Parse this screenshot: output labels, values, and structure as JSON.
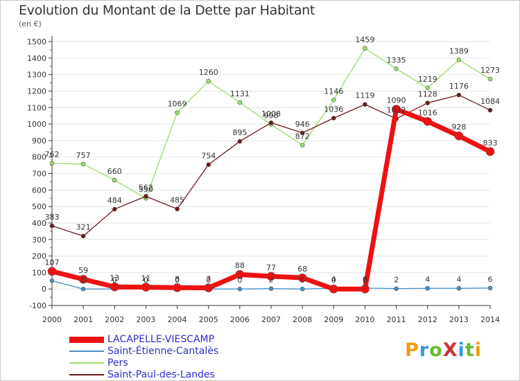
{
  "title": "Evolution du Montant de la Dette par Habitant",
  "unit_label": "(en €)",
  "logo_text": "ProXiti",
  "colors": {
    "axis": "#333333",
    "grid": "#e6e6e6",
    "lacapelle": "#ee1111",
    "saint_etienne": "#4a90c8",
    "pers": "#99dd66",
    "saint_paul": "#6b1a1a",
    "logo_letters": [
      "#f39c12",
      "#3399dd",
      "#66bb33",
      "#cc3333",
      "#3399dd",
      "#66bb33",
      "#f39c12"
    ]
  },
  "chart_data": {
    "type": "line",
    "title": "Evolution du Montant de la Dette par Habitant",
    "ylabel": "(en €)",
    "xlabel": "",
    "x": [
      2000,
      2001,
      2002,
      2003,
      2004,
      2005,
      2006,
      2007,
      2008,
      2009,
      2010,
      2011,
      2012,
      2013,
      2014
    ],
    "ylim": [
      -100,
      1500
    ],
    "yticks": [
      -100,
      0,
      100,
      200,
      300,
      400,
      500,
      600,
      700,
      800,
      900,
      1000,
      1100,
      1200,
      1300,
      1400,
      1500
    ],
    "grid": true,
    "legend_position": "bottom-left",
    "series": [
      {
        "name": "LACAPELLE-VIESCAMP",
        "key": "lacapelle",
        "values": [
          107,
          59,
          13,
          11,
          8,
          7,
          88,
          77,
          68,
          0,
          0,
          1090,
          1016,
          928,
          833
        ]
      },
      {
        "name": "Saint-Étienne-Cantalès",
        "key": "saint_etienne",
        "values": [
          50,
          0,
          0,
          0,
          0,
          0,
          0,
          2,
          0,
          4,
          6,
          2,
          4,
          4,
          6
        ]
      },
      {
        "name": "Pers",
        "key": "pers",
        "values": [
          762,
          757,
          660,
          550,
          1069,
          1260,
          1131,
          998,
          872,
          1146,
          1459,
          1335,
          1219,
          1389,
          1273
        ]
      },
      {
        "name": "Saint-Paul-des-Landes",
        "key": "saint_paul",
        "values": [
          383,
          321,
          484,
          562,
          485,
          754,
          895,
          1008,
          946,
          1036,
          1119,
          1032,
          1128,
          1176,
          1084
        ]
      }
    ],
    "data_labels": {
      "lacapelle": [
        "107",
        "59",
        "13",
        "11",
        "8",
        "7",
        "88",
        "77",
        "68",
        "0",
        "0",
        "1090",
        "1016",
        "928",
        "833"
      ],
      "saint_etienne": [
        "",
        "0",
        "0",
        "0",
        "0",
        "0",
        "0",
        "2",
        "0",
        "4",
        "6",
        "2",
        "4",
        "4",
        "6"
      ],
      "pers": [
        "762",
        "757",
        "660",
        "550",
        "1069",
        "1260",
        "1131",
        "998",
        "872",
        "1146",
        "1459",
        "1335",
        "1219",
        "1389",
        "1273"
      ],
      "saint_paul": [
        "383",
        "321",
        "484",
        "562",
        "485",
        "754",
        "895",
        "1008",
        "946",
        "1036",
        "1119",
        "1032",
        "1128",
        "1176",
        "1084"
      ]
    }
  }
}
